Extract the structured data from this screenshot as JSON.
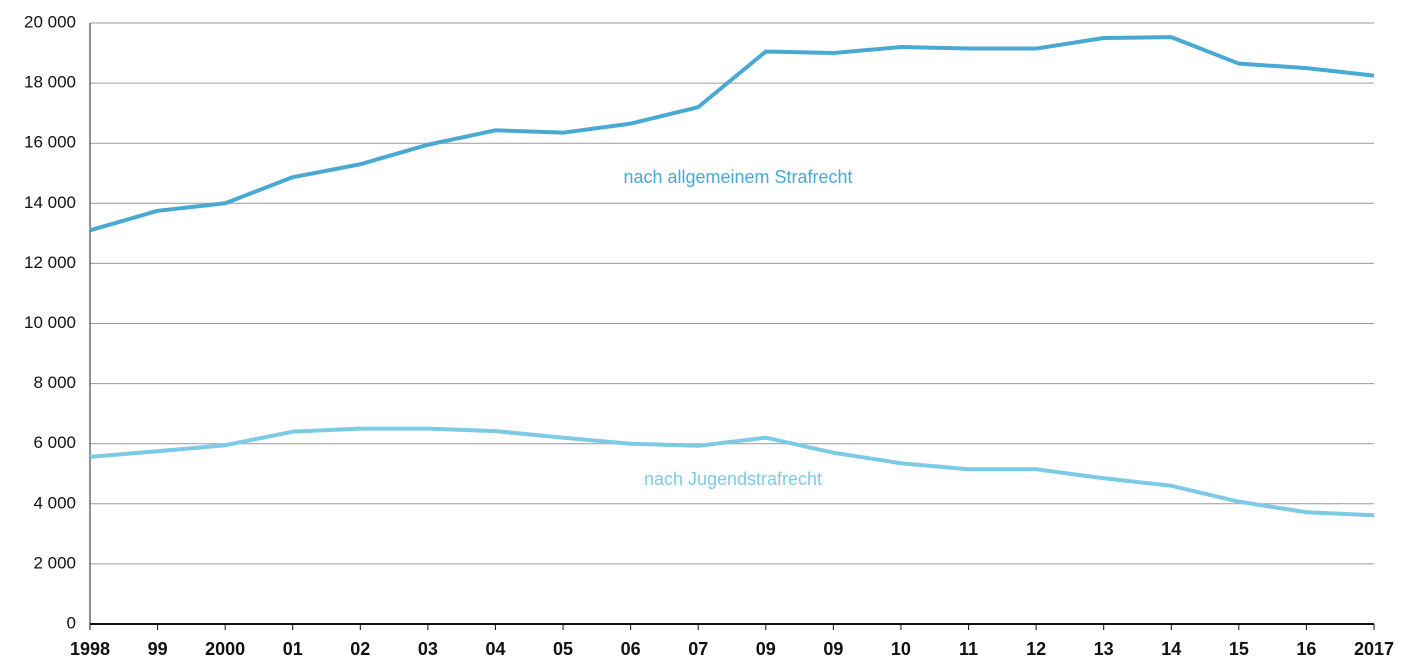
{
  "chart_data": {
    "type": "line",
    "categories": [
      "1998",
      "99",
      "2000",
      "01",
      "02",
      "03",
      "04",
      "05",
      "06",
      "07",
      "09",
      "09",
      "10",
      "11",
      "12",
      "13",
      "14",
      "15",
      "16",
      "2017"
    ],
    "series": [
      {
        "name": "nach allgemeinem Strafrecht",
        "color": "#4aa9d3",
        "values": [
          13100,
          13750,
          14000,
          14870,
          15300,
          15950,
          16430,
          16350,
          16650,
          17200,
          19050,
          19000,
          19200,
          19150,
          19150,
          19500,
          19530,
          18650,
          18500,
          18250
        ]
      },
      {
        "name": "nach Jugendstrafrecht",
        "color": "#7ccae6",
        "values": [
          5560,
          5750,
          5950,
          6400,
          6500,
          6500,
          6420,
          6200,
          6000,
          5930,
          6200,
          5700,
          5350,
          5150,
          5150,
          4850,
          4600,
          4070,
          3720,
          3620
        ]
      }
    ],
    "ylim": [
      0,
      20000
    ],
    "yticks": [
      0,
      {
        "value": 2000,
        "label": "2 000"
      },
      {
        "value": 4000,
        "label": "4 000"
      },
      {
        "value": 6000,
        "label": "6 000"
      },
      {
        "value": 8000,
        "label": "8 000"
      },
      {
        "value": 10000,
        "label": "10 000"
      },
      {
        "value": 12000,
        "label": "12 000"
      },
      {
        "value": 14000,
        "label": "14 000"
      },
      {
        "value": 16000,
        "label": "16 000"
      },
      {
        "value": 18000,
        "label": "18 000"
      },
      {
        "value": 20000,
        "label": "20 000"
      }
    ],
    "grid": true
  }
}
